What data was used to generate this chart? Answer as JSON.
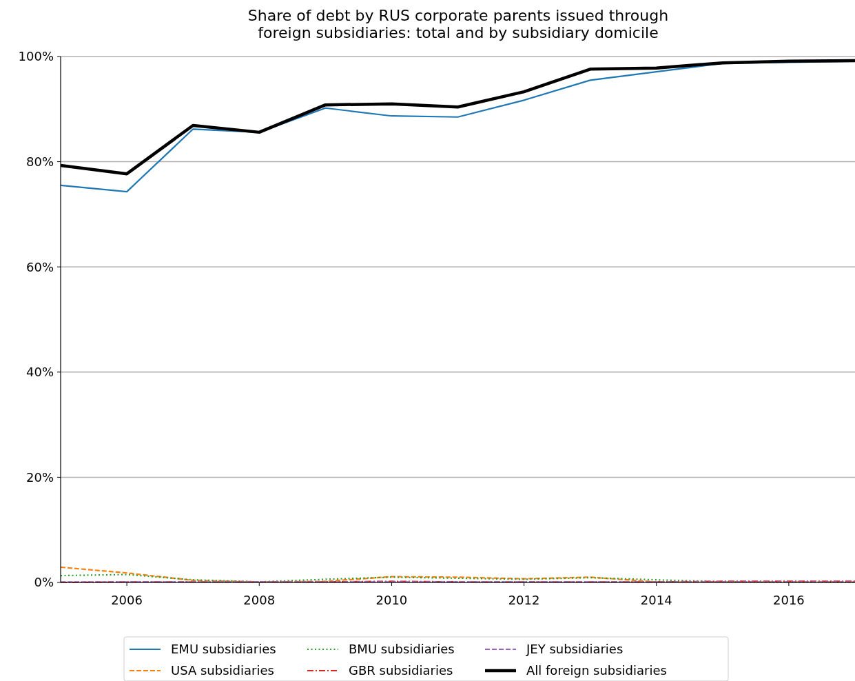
{
  "chart_data": {
    "type": "line",
    "title": "Share of debt by RUS corporate parents issued through\nforeign subsidiaries: total and by subsidiary domicile",
    "x": [
      2005,
      2006,
      2007,
      2008,
      2009,
      2010,
      2011,
      2012,
      2013,
      2014,
      2015,
      2016,
      2017
    ],
    "xlim": [
      2005,
      2017
    ],
    "xticks": [
      2006,
      2008,
      2010,
      2012,
      2014,
      2016
    ],
    "ylim": [
      0,
      100
    ],
    "yticks": [
      {
        "value": 0,
        "label": "0%"
      },
      {
        "value": 20,
        "label": "20%"
      },
      {
        "value": 40,
        "label": "40%"
      },
      {
        "value": 60,
        "label": "60%"
      },
      {
        "value": 80,
        "label": "80%"
      },
      {
        "value": 100,
        "label": "100%"
      }
    ],
    "grid": "y",
    "legend": "bottom",
    "series": [
      {
        "name": "EMU subsidiaries",
        "color": "#1f77b4",
        "line_style": "solid",
        "values": [
          75.5,
          74.3,
          86.2,
          85.6,
          90.2,
          88.7,
          88.5,
          91.7,
          95.5,
          97.1,
          98.7,
          98.9,
          99.1
        ]
      },
      {
        "name": "USA subsidiaries",
        "color": "#ff7f0e",
        "line_style": "dashed",
        "values": [
          2.9,
          1.8,
          0.4,
          0.1,
          0.2,
          1.1,
          1.0,
          0.7,
          1.0,
          0.1,
          0.1,
          0.1,
          0.1
        ]
      },
      {
        "name": "BMU subsidiaries",
        "color": "#2ca02c",
        "line_style": "dotted",
        "values": [
          1.3,
          1.5,
          0.5,
          0.1,
          0.6,
          1.0,
          0.8,
          0.6,
          0.9,
          0.5,
          0.1,
          0.0,
          0.0
        ]
      },
      {
        "name": "GBR subsidiaries",
        "color": "#d62728",
        "line_style": "dashdot",
        "values": [
          0.0,
          0.1,
          0.1,
          0.1,
          0.1,
          0.2,
          0.1,
          0.1,
          0.1,
          0.1,
          0.2,
          0.2,
          0.2
        ]
      },
      {
        "name": "JEY subsidiaries",
        "color": "#9467bd",
        "line_style": "dashed",
        "values": [
          0.1,
          0.1,
          0.1,
          0.1,
          0.1,
          0.1,
          0.1,
          0.1,
          0.1,
          0.1,
          0.1,
          0.1,
          0.1
        ]
      },
      {
        "name": "All foreign subsidiaries",
        "color": "#000000",
        "line_style": "solid",
        "values": [
          79.3,
          77.7,
          86.9,
          85.6,
          90.8,
          91.0,
          90.4,
          93.3,
          97.6,
          97.8,
          98.8,
          99.1,
          99.2
        ]
      }
    ]
  }
}
